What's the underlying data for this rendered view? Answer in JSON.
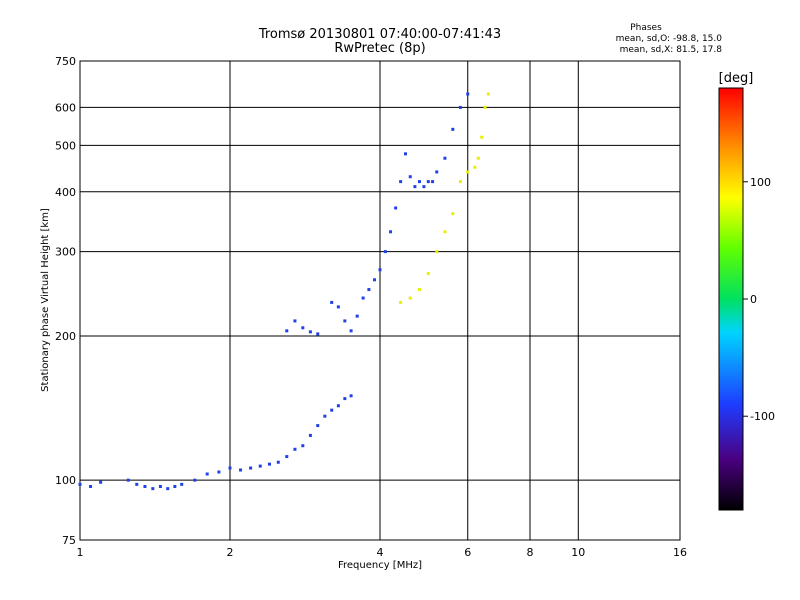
{
  "chart_data": {
    "type": "scatter",
    "title": "Tromsø 20130801 07:40:00-07:41:43",
    "subtitle": "RwPretec (8p)",
    "xlabel": "Frequency [MHz]",
    "ylabel": "Stationary phase Virtual Height [km]",
    "xscale": "log",
    "yscale": "log",
    "xlim": [
      1,
      16
    ],
    "ylim": [
      75,
      750
    ],
    "xticks": [
      1,
      2,
      4,
      6,
      8,
      10,
      16
    ],
    "xtick_labels": [
      "1",
      "2",
      "4",
      "6",
      "8",
      "10",
      "16"
    ],
    "yticks": [
      75,
      100,
      200,
      300,
      400,
      500,
      600,
      750
    ],
    "ytick_labels": [
      "75",
      "100",
      "200",
      "300",
      "400",
      "500",
      "600",
      "750"
    ],
    "grid": true,
    "phases_info": {
      "header": "Phases",
      "line_o": "mean, sd,O: -98.8, 15.0",
      "line_x": "mean, sd,X:  81.5, 17.8"
    },
    "colorbar": {
      "label": "[deg]",
      "range": [
        -180,
        180
      ],
      "ticks": [
        100,
        0,
        -100
      ],
      "tick_labels": [
        "100",
        "0",
        "-100"
      ]
    },
    "series": [
      {
        "name": "O-mode trace (blue)",
        "phase_deg": -100,
        "points": [
          [
            1.0,
            98
          ],
          [
            1.05,
            97
          ],
          [
            1.1,
            99
          ],
          [
            1.25,
            100
          ],
          [
            1.3,
            98
          ],
          [
            1.35,
            97
          ],
          [
            1.4,
            96
          ],
          [
            1.45,
            97
          ],
          [
            1.5,
            96
          ],
          [
            1.55,
            97
          ],
          [
            1.6,
            98
          ],
          [
            1.7,
            100
          ],
          [
            1.8,
            103
          ],
          [
            1.9,
            104
          ],
          [
            2.0,
            106
          ],
          [
            2.1,
            105
          ],
          [
            2.2,
            106
          ],
          [
            2.3,
            107
          ],
          [
            2.4,
            108
          ],
          [
            2.5,
            109
          ],
          [
            2.6,
            112
          ],
          [
            2.7,
            116
          ],
          [
            2.8,
            118
          ],
          [
            2.9,
            124
          ],
          [
            3.0,
            130
          ],
          [
            3.1,
            136
          ],
          [
            3.2,
            140
          ],
          [
            3.3,
            143
          ],
          [
            3.4,
            148
          ],
          [
            3.5,
            150
          ],
          [
            2.6,
            205
          ],
          [
            2.7,
            215
          ],
          [
            2.8,
            208
          ],
          [
            2.9,
            204
          ],
          [
            3.0,
            202
          ],
          [
            3.2,
            235
          ],
          [
            3.3,
            230
          ],
          [
            3.4,
            215
          ],
          [
            3.5,
            205
          ],
          [
            3.6,
            220
          ],
          [
            3.7,
            240
          ],
          [
            3.8,
            250
          ],
          [
            3.9,
            262
          ],
          [
            4.0,
            275
          ],
          [
            4.1,
            300
          ],
          [
            4.2,
            330
          ],
          [
            4.3,
            370
          ],
          [
            4.4,
            420
          ],
          [
            4.5,
            480
          ],
          [
            4.6,
            430
          ],
          [
            4.7,
            410
          ],
          [
            4.8,
            420
          ],
          [
            4.9,
            410
          ],
          [
            5.0,
            420
          ],
          [
            5.1,
            420
          ],
          [
            5.2,
            440
          ],
          [
            5.4,
            470
          ],
          [
            5.6,
            540
          ],
          [
            5.8,
            600
          ],
          [
            6.0,
            640
          ]
        ]
      },
      {
        "name": "X-mode trace (yellow)",
        "phase_deg": 80,
        "points": [
          [
            4.4,
            235
          ],
          [
            4.6,
            240
          ],
          [
            4.8,
            250
          ],
          [
            5.0,
            270
          ],
          [
            5.2,
            300
          ],
          [
            5.4,
            330
          ],
          [
            5.6,
            360
          ],
          [
            5.8,
            420
          ],
          [
            6.0,
            440
          ],
          [
            6.2,
            450
          ],
          [
            6.3,
            470
          ],
          [
            6.4,
            520
          ],
          [
            6.5,
            600
          ],
          [
            6.6,
            640
          ]
        ]
      }
    ]
  }
}
